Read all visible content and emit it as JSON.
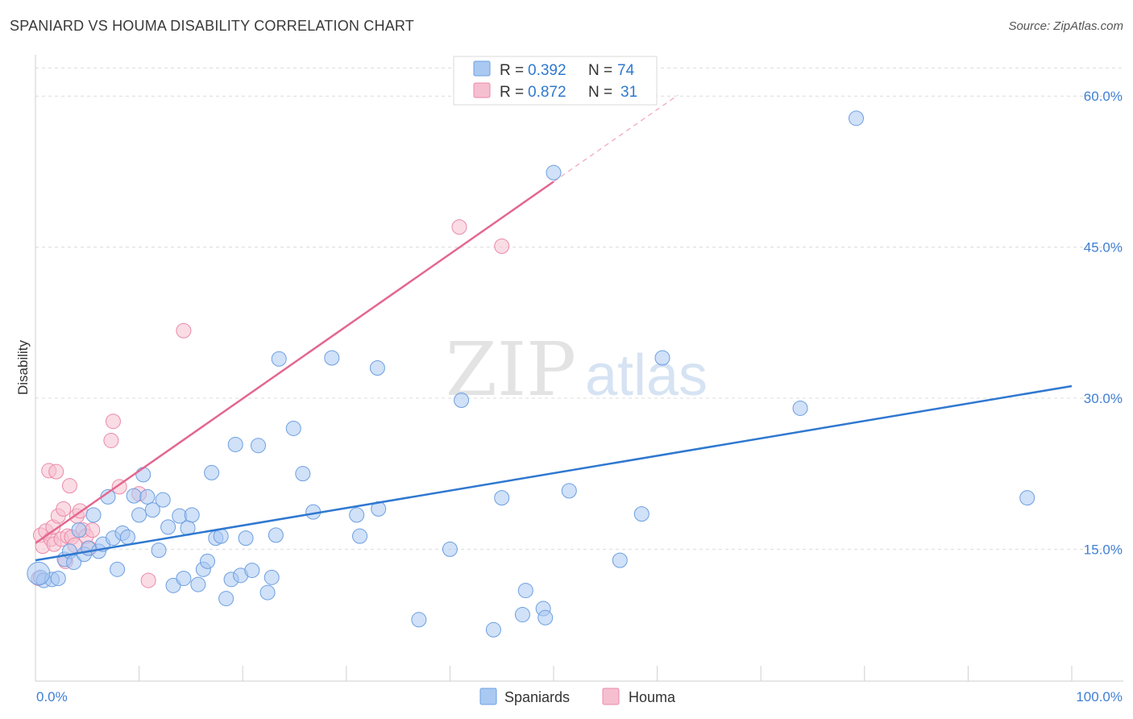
{
  "title": "SPANIARD VS HOUMA DISABILITY CORRELATION CHART",
  "source": "Source: ZipAtlas.com",
  "watermark": {
    "zip": "ZIP",
    "atlas": "atlas"
  },
  "colors": {
    "blue": "#2f78d0",
    "blue_fill": "#a9c9f2",
    "blue_stroke": "#6d9fe0",
    "pink": "#e36790",
    "pink_fill": "#f6bfd0",
    "pink_stroke": "#ea8aaa",
    "tick_text": "#3f7fd4",
    "grid": "#dcdcdc"
  },
  "legend_top": [
    {
      "r_label": "R =",
      "r_value": "0.392",
      "n_label": "N =",
      "n_value": "74",
      "color": "blue"
    },
    {
      "r_label": "R =",
      "r_value": "0.872",
      "n_label": "N =",
      "n_value": "31",
      "color": "pink"
    }
  ],
  "chart_data": {
    "type": "scatter",
    "title": "SPANIARD VS HOUMA DISABILITY CORRELATION CHART",
    "xlabel": "",
    "ylabel": "Disability",
    "xlim": [
      0,
      100
    ],
    "ylim": [
      1.9,
      64.1
    ],
    "x_tick_labels": [
      "0.0%",
      "100.0%"
    ],
    "y_ticks": [
      15,
      30,
      45,
      60
    ],
    "y_tick_labels": [
      "15.0%",
      "30.0%",
      "45.0%",
      "60.0%"
    ],
    "grid": "horizontal dashed",
    "legend_position": "bottom-center",
    "series": [
      {
        "name": "Spaniards",
        "color": "blue",
        "r": 0.392,
        "n": 74,
        "trend": {
          "x": [
            0,
            100
          ],
          "y": [
            13.9,
            31.2
          ]
        },
        "points": [
          [
            0.5,
            12.2
          ],
          [
            0.8,
            11.9
          ],
          [
            1.6,
            12.0
          ],
          [
            2.2,
            12.1
          ],
          [
            2.8,
            14.0
          ],
          [
            3.3,
            14.8
          ],
          [
            3.7,
            13.7
          ],
          [
            4.2,
            16.9
          ],
          [
            4.7,
            14.5
          ],
          [
            5.1,
            15.1
          ],
          [
            5.6,
            18.4
          ],
          [
            6.1,
            14.8
          ],
          [
            6.5,
            15.5
          ],
          [
            7.0,
            20.2
          ],
          [
            7.5,
            16.1
          ],
          [
            7.9,
            13.0
          ],
          [
            8.4,
            16.6
          ],
          [
            8.9,
            16.2
          ],
          [
            9.5,
            20.3
          ],
          [
            10.0,
            18.4
          ],
          [
            10.4,
            22.4
          ],
          [
            10.8,
            20.2
          ],
          [
            11.3,
            18.9
          ],
          [
            11.9,
            14.9
          ],
          [
            12.3,
            19.9
          ],
          [
            12.8,
            17.2
          ],
          [
            13.3,
            11.4
          ],
          [
            13.9,
            18.3
          ],
          [
            14.3,
            12.1
          ],
          [
            14.7,
            17.1
          ],
          [
            15.1,
            18.4
          ],
          [
            15.7,
            11.5
          ],
          [
            16.2,
            13.0
          ],
          [
            16.6,
            13.8
          ],
          [
            17.0,
            22.6
          ],
          [
            17.4,
            16.1
          ],
          [
            17.9,
            16.3
          ],
          [
            18.4,
            10.1
          ],
          [
            18.9,
            12.0
          ],
          [
            19.3,
            25.4
          ],
          [
            19.8,
            12.4
          ],
          [
            20.3,
            16.1
          ],
          [
            20.9,
            12.9
          ],
          [
            21.5,
            25.3
          ],
          [
            22.4,
            10.7
          ],
          [
            22.8,
            12.2
          ],
          [
            23.2,
            16.4
          ],
          [
            23.5,
            33.9
          ],
          [
            24.9,
            27.0
          ],
          [
            25.8,
            22.5
          ],
          [
            26.8,
            18.7
          ],
          [
            28.6,
            34.0
          ],
          [
            31.0,
            18.4
          ],
          [
            31.3,
            16.3
          ],
          [
            33.0,
            33.0
          ],
          [
            33.1,
            19.0
          ],
          [
            37.0,
            8.0
          ],
          [
            40.0,
            15.0
          ],
          [
            41.1,
            29.8
          ],
          [
            44.2,
            7.0
          ],
          [
            45.0,
            20.1
          ],
          [
            47.0,
            8.5
          ],
          [
            47.3,
            10.9
          ],
          [
            49.0,
            9.1
          ],
          [
            49.2,
            8.2
          ],
          [
            50.0,
            52.4
          ],
          [
            51.5,
            20.8
          ],
          [
            56.4,
            13.9
          ],
          [
            58.5,
            18.5
          ],
          [
            60.5,
            34.0
          ],
          [
            73.8,
            29.0
          ],
          [
            79.2,
            57.8
          ],
          [
            95.7,
            20.1
          ],
          [
            0.3,
            12.6
          ]
        ]
      },
      {
        "name": "Houma",
        "color": "pink",
        "r": 0.872,
        "n": 31,
        "trend": {
          "x": [
            0,
            50
          ],
          "y": [
            15.6,
            51.5
          ]
        },
        "trend_ext": {
          "x": [
            50,
            62
          ],
          "y": [
            51.5,
            60.1
          ]
        },
        "points": [
          [
            0.3,
            12.1
          ],
          [
            0.5,
            16.4
          ],
          [
            0.7,
            15.3
          ],
          [
            1.0,
            16.8
          ],
          [
            1.3,
            22.8
          ],
          [
            1.5,
            16.0
          ],
          [
            1.7,
            17.2
          ],
          [
            1.8,
            15.5
          ],
          [
            2.0,
            22.7
          ],
          [
            2.2,
            18.3
          ],
          [
            2.5,
            16.0
          ],
          [
            2.7,
            19.0
          ],
          [
            2.9,
            13.8
          ],
          [
            3.1,
            16.3
          ],
          [
            3.3,
            21.3
          ],
          [
            3.5,
            16.2
          ],
          [
            3.8,
            15.4
          ],
          [
            4.0,
            18.3
          ],
          [
            4.3,
            18.8
          ],
          [
            4.6,
            16.9
          ],
          [
            4.9,
            16.3
          ],
          [
            5.2,
            15.1
          ],
          [
            5.5,
            16.9
          ],
          [
            7.3,
            25.8
          ],
          [
            7.5,
            27.7
          ],
          [
            8.1,
            21.2
          ],
          [
            10.0,
            20.5
          ],
          [
            10.9,
            11.9
          ],
          [
            14.3,
            36.7
          ],
          [
            40.9,
            47.0
          ],
          [
            45.0,
            45.1
          ]
        ]
      }
    ]
  }
}
